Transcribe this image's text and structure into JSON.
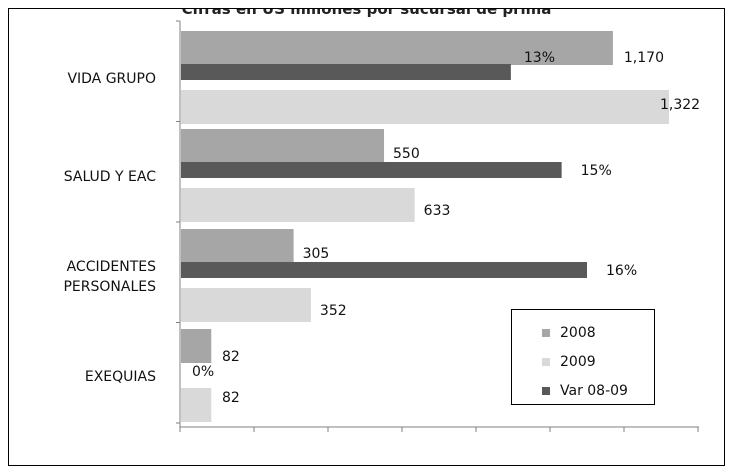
{
  "chart_data": {
    "type": "bar",
    "orientation": "horizontal",
    "title": "Cifras en US millones por sucursal de prima",
    "categories": [
      "VIDA GRUPO",
      "SALUD Y EAC",
      "ACCIDENTES PERSONALES",
      "EXEQUIAS"
    ],
    "category_labels": [
      [
        "VIDA GRUPO"
      ],
      [
        "SALUD Y EAC"
      ],
      [
        "ACCIDENTES",
        "PERSONALES"
      ],
      [
        "EXEQUIAS"
      ]
    ],
    "series": [
      {
        "name": "2008",
        "values": [
          1170,
          550,
          305,
          82
        ],
        "labels": [
          "1,170",
          "550",
          "305",
          "82"
        ],
        "color": "#a6a6a6"
      },
      {
        "name": "Var 08-09",
        "values": [
          13,
          15,
          16,
          0
        ],
        "labels": [
          "13%",
          "15%",
          "16%",
          "0%"
        ],
        "color": "#595959"
      },
      {
        "name": "2009",
        "values": [
          1322,
          633,
          352,
          82
        ],
        "labels": [
          "1,322",
          "633",
          "352",
          "82"
        ],
        "color": "#d9d9d9"
      }
    ],
    "legend": {
      "placement": "bottom-right",
      "order": [
        "2008",
        "2009",
        "Var 08-09"
      ]
    },
    "grid": false,
    "axis_tick_labels_shown": false
  }
}
